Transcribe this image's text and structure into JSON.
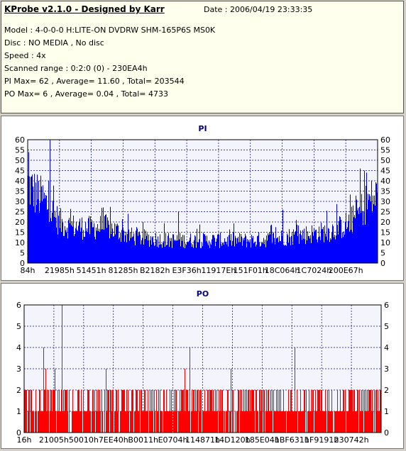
{
  "info": {
    "title": "KProbe v2.1.0 - Designed by Karr",
    "date": "Date : 2006/04/19 23:33:35",
    "lines": [
      "Model : 4-0-0-0 H:LITE-ON DVDRW SHM-165P6S MS0K",
      "Disc : NO MEDIA , No disc",
      "Speed : 4x",
      "Scanned range : 0:2:0 (0) - 230EA4h",
      "PI Max= 62 , Average= 11.60 , Total= 203544",
      "PO Max= 6 , Average= 0.04 , Total= 4733"
    ]
  },
  "colors": {
    "pi_bar": "#0000ff",
    "po_bar": "#ff0000",
    "grid": "#00008b",
    "plot_bg": "#f4f4fc"
  },
  "chart_data": [
    {
      "type": "bar",
      "title": "PI",
      "xlabel": "",
      "ylabel": "",
      "ylim": [
        0,
        60
      ],
      "yticks": [
        0,
        5,
        10,
        15,
        20,
        25,
        30,
        35,
        40,
        45,
        50,
        55,
        60
      ],
      "x_tick_labels": [
        "84h",
        "21985h",
        "51451h",
        "81285h",
        "B2182h",
        "E3F36h",
        "11917Eh",
        "151F01h",
        "18C064h",
        "1C7024h",
        "200E67h"
      ],
      "grid": true,
      "max": 62,
      "average": 11.6,
      "profile": [
        [
          0,
          45
        ],
        [
          0.02,
          40
        ],
        [
          0.04,
          37
        ],
        [
          0.06,
          32
        ],
        [
          0.08,
          26
        ],
        [
          0.1,
          22
        ],
        [
          0.13,
          21
        ],
        [
          0.18,
          20
        ],
        [
          0.22,
          21
        ],
        [
          0.26,
          18
        ],
        [
          0.3,
          15
        ],
        [
          0.35,
          14
        ],
        [
          0.4,
          13
        ],
        [
          0.45,
          13
        ],
        [
          0.5,
          13
        ],
        [
          0.55,
          13
        ],
        [
          0.6,
          13
        ],
        [
          0.65,
          13
        ],
        [
          0.7,
          14
        ],
        [
          0.74,
          15
        ],
        [
          0.78,
          16
        ],
        [
          0.82,
          17
        ],
        [
          0.86,
          18
        ],
        [
          0.89,
          20
        ],
        [
          0.92,
          23
        ],
        [
          0.95,
          29
        ],
        [
          0.97,
          35
        ],
        [
          1.0,
          38
        ]
      ],
      "spikes": [
        [
          0.064,
          62
        ],
        [
          0.003,
          54
        ],
        [
          0.952,
          46
        ],
        [
          0.97,
          44
        ],
        [
          0.43,
          25
        ],
        [
          0.73,
          26
        ]
      ]
    },
    {
      "type": "bar",
      "title": "PO",
      "xlabel": "",
      "ylabel": "",
      "ylim": [
        0,
        6
      ],
      "yticks": [
        0,
        1,
        2,
        3,
        4,
        5,
        6
      ],
      "x_tick_labels": [
        "16h",
        "21005h",
        "50010h",
        "7EE40h",
        "B0011h",
        "E0704h",
        "114871h",
        "14D120h",
        "185E04h",
        "1BF631h",
        "1F9191h",
        "230742h"
      ],
      "grid": true,
      "max": 6,
      "average": 0.04,
      "spikes": [
        [
          0.105,
          6
        ],
        [
          0.054,
          4
        ],
        [
          0.465,
          4
        ],
        [
          0.758,
          4
        ],
        [
          0.06,
          3
        ],
        [
          0.085,
          3
        ],
        [
          0.23,
          3
        ],
        [
          0.45,
          3
        ],
        [
          0.58,
          3
        ]
      ]
    }
  ]
}
